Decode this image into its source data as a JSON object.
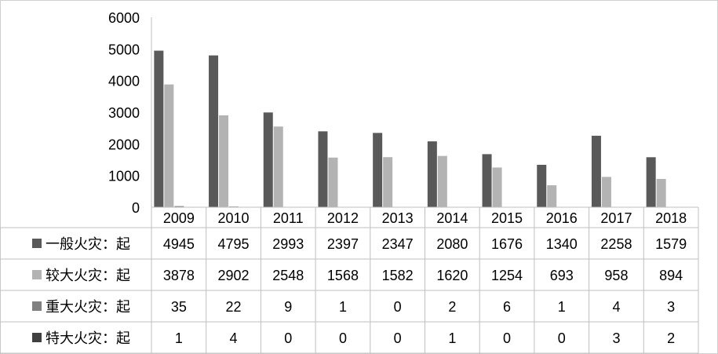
{
  "chart_data": {
    "type": "bar",
    "categories": [
      "2009",
      "2010",
      "2011",
      "2012",
      "2013",
      "2014",
      "2015",
      "2016",
      "2017",
      "2018"
    ],
    "series": [
      {
        "name": "一般火灾：起",
        "color": "#595959",
        "values": [
          4945,
          4795,
          2993,
          2397,
          2347,
          2080,
          1676,
          1340,
          2258,
          1579
        ]
      },
      {
        "name": "较大火灾：起",
        "color": "#b3b3b3",
        "values": [
          3878,
          2902,
          2548,
          1568,
          1582,
          1620,
          1254,
          693,
          958,
          894
        ]
      },
      {
        "name": "重大火灾：起",
        "color": "#808080",
        "values": [
          35,
          22,
          9,
          1,
          0,
          2,
          6,
          1,
          4,
          3
        ]
      },
      {
        "name": "特大火灾：起",
        "color": "#404040",
        "values": [
          1,
          4,
          0,
          0,
          0,
          1,
          0,
          0,
          3,
          2
        ]
      }
    ],
    "yticks": [
      "0",
      "1000",
      "2000",
      "3000",
      "4000",
      "5000",
      "6000"
    ],
    "ylim": [
      0,
      6000
    ],
    "grid": false,
    "legend": "data-table",
    "title": "",
    "xlabel": "",
    "ylabel": ""
  }
}
